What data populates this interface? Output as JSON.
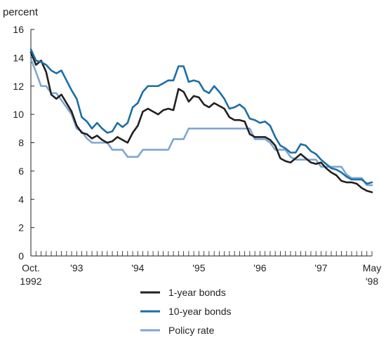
{
  "chart_data": {
    "type": "line",
    "ylabel": "percent",
    "ylim": [
      0,
      16
    ],
    "yticks": [
      "0",
      "2",
      "4",
      "6",
      "8",
      "10",
      "12",
      "14",
      "16"
    ],
    "x_range": [
      "1992-10",
      "1998-05"
    ],
    "xtick_labels": [
      {
        "date": "1992-10",
        "lines": [
          "Oct.",
          "1992"
        ]
      },
      {
        "date": "1993-07",
        "lines": [
          "'93"
        ]
      },
      {
        "date": "1994-07",
        "lines": [
          "'94"
        ]
      },
      {
        "date": "1995-07",
        "lines": [
          "'95"
        ]
      },
      {
        "date": "1996-07",
        "lines": [
          "'96"
        ]
      },
      {
        "date": "1997-07",
        "lines": [
          "'97"
        ]
      },
      {
        "date": "1998-05",
        "lines": [
          "May",
          "'98"
        ]
      }
    ],
    "legend_position": "bottom",
    "grid": false,
    "x": [
      "1992-10",
      "1992-11",
      "1992-12",
      "1993-01",
      "1993-02",
      "1993-03",
      "1993-04",
      "1993-05",
      "1993-06",
      "1993-07",
      "1993-08",
      "1993-09",
      "1993-10",
      "1993-11",
      "1993-12",
      "1994-01",
      "1994-02",
      "1994-03",
      "1994-04",
      "1994-05",
      "1994-06",
      "1994-07",
      "1994-08",
      "1994-09",
      "1994-10",
      "1994-11",
      "1994-12",
      "1995-01",
      "1995-02",
      "1995-03",
      "1995-04",
      "1995-05",
      "1995-06",
      "1995-07",
      "1995-08",
      "1995-09",
      "1995-10",
      "1995-11",
      "1995-12",
      "1996-01",
      "1996-02",
      "1996-03",
      "1996-04",
      "1996-05",
      "1996-06",
      "1996-07",
      "1996-08",
      "1996-09",
      "1996-10",
      "1996-11",
      "1996-12",
      "1997-01",
      "1997-02",
      "1997-03",
      "1997-04",
      "1997-05",
      "1997-06",
      "1997-07",
      "1997-08",
      "1997-09",
      "1997-10",
      "1997-11",
      "1997-12",
      "1998-01",
      "1998-02",
      "1998-03",
      "1998-04",
      "1998-05"
    ],
    "series": [
      {
        "name": "1-year bonds",
        "color": "#231f20",
        "values": [
          14.4,
          13.5,
          13.8,
          13.0,
          11.4,
          11.1,
          11.4,
          10.8,
          10.2,
          9.2,
          8.7,
          8.6,
          8.3,
          8.5,
          8.2,
          8.0,
          8.1,
          8.4,
          8.2,
          8.0,
          8.7,
          9.2,
          10.2,
          10.4,
          10.2,
          10.0,
          10.3,
          10.4,
          10.3,
          11.8,
          11.6,
          10.9,
          11.3,
          11.2,
          10.7,
          10.5,
          10.8,
          10.6,
          10.4,
          9.8,
          9.6,
          9.6,
          9.5,
          8.6,
          8.4,
          8.4,
          8.4,
          8.2,
          7.8,
          6.9,
          6.7,
          6.6,
          6.9,
          7.2,
          6.9,
          6.6,
          6.5,
          6.6,
          6.2,
          5.9,
          5.7,
          5.3,
          5.2,
          5.2,
          5.1,
          4.8,
          4.6,
          4.5
        ]
      },
      {
        "name": "10-year bonds",
        "color": "#1c6ea4",
        "values": [
          14.6,
          13.8,
          13.7,
          13.5,
          13.1,
          12.9,
          13.1,
          12.4,
          11.7,
          11.1,
          9.8,
          9.5,
          9.0,
          9.4,
          9.0,
          8.7,
          8.8,
          9.4,
          9.1,
          9.4,
          10.5,
          10.8,
          11.6,
          12.0,
          12.0,
          12.0,
          12.2,
          12.4,
          12.4,
          13.4,
          13.4,
          12.3,
          12.4,
          12.3,
          11.7,
          11.5,
          12.0,
          11.6,
          11.1,
          10.4,
          10.5,
          10.7,
          10.4,
          9.7,
          9.6,
          9.4,
          9.5,
          9.2,
          8.4,
          7.8,
          7.6,
          7.3,
          7.3,
          7.9,
          7.8,
          7.4,
          7.2,
          6.8,
          6.5,
          6.2,
          6.1,
          5.9,
          5.6,
          5.4,
          5.4,
          5.4,
          5.1,
          5.2
        ]
      },
      {
        "name": "Policy rate",
        "color": "#7fa6cf",
        "values": [
          13.9,
          13.0,
          12.0,
          12.0,
          11.5,
          11.5,
          11.0,
          10.5,
          10.0,
          9.0,
          8.8,
          8.3,
          8.0,
          8.0,
          8.0,
          8.0,
          7.5,
          7.5,
          7.5,
          7.0,
          7.0,
          7.0,
          7.5,
          7.5,
          7.5,
          7.5,
          7.5,
          7.5,
          8.25,
          8.25,
          8.25,
          9.0,
          9.0,
          9.0,
          9.0,
          9.0,
          9.0,
          9.0,
          9.0,
          9.0,
          9.0,
          9.0,
          9.0,
          9.0,
          8.25,
          8.25,
          8.25,
          8.0,
          7.5,
          7.5,
          7.5,
          7.0,
          6.8,
          6.8,
          6.8,
          6.8,
          6.8,
          6.3,
          6.3,
          6.3,
          6.3,
          6.3,
          5.75,
          5.5,
          5.5,
          5.5,
          5.0,
          5.0
        ]
      }
    ]
  }
}
